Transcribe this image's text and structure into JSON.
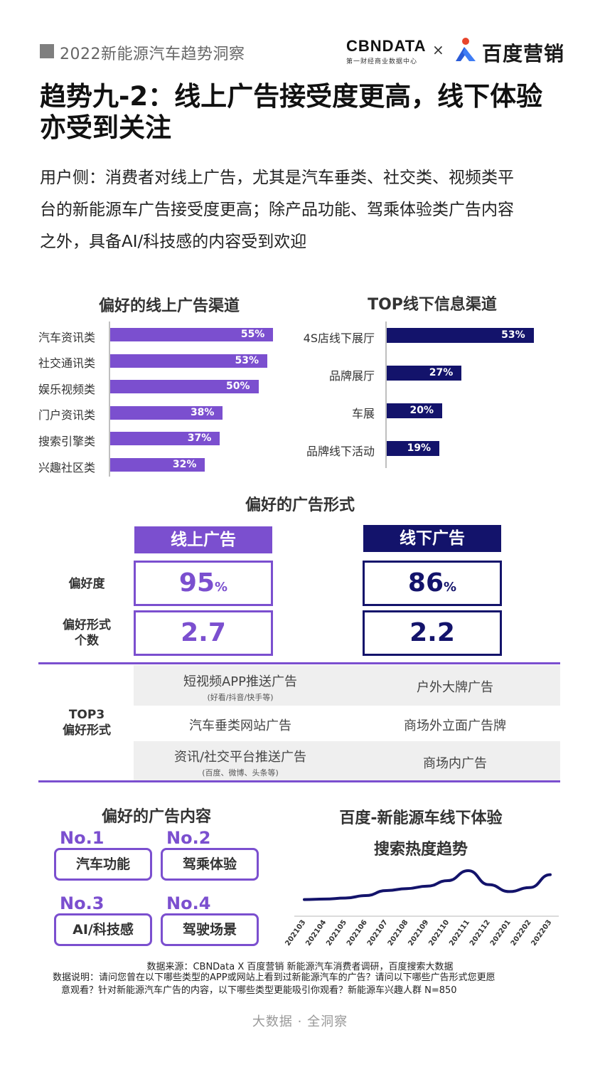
{
  "header": {
    "report_title": "2022新能源汽车趋势洞察",
    "cbn_logo": "CBNDATA",
    "cbn_logo_sub": "第一财经商业数据中心",
    "times": "×",
    "baidu_logo": "百度营销"
  },
  "title_line1": "趋势九-2：线上广告接受度更高，线下体验",
  "title_line2": "亦受到关注",
  "intro_line1": "用户侧：消费者对线上广告，尤其是汽车垂类、社交类、视频类平",
  "intro_line2": "台的新能源车广告接受度更高；除产品功能、驾乘体验类广告内容",
  "intro_line3": "之外，具备AI/科技感的内容受到欢迎",
  "colors": {
    "purple": "#7b4fcf",
    "navy": "#13136b",
    "gray_cell": "#efefef"
  },
  "chart_data": [
    {
      "type": "bar",
      "orientation": "horizontal",
      "title": "偏好的线上广告渠道",
      "categories": [
        "汽车资讯类",
        "社交通讯类",
        "娱乐视频类",
        "门户资讯类",
        "搜索引擎类",
        "兴趣社区类"
      ],
      "values": [
        55,
        53,
        50,
        38,
        37,
        32
      ],
      "value_labels": [
        "55%",
        "53%",
        "50%",
        "38%",
        "37%",
        "32%"
      ],
      "color": "#7b4fcf"
    },
    {
      "type": "bar",
      "orientation": "horizontal",
      "title": "TOP线下信息渠道",
      "categories": [
        "4S店线下展厅",
        "品牌展厅",
        "车展",
        "品牌线下活动"
      ],
      "values": [
        53,
        27,
        20,
        19
      ],
      "value_labels": [
        "53%",
        "27%",
        "20%",
        "19%"
      ],
      "color": "#13136b"
    },
    {
      "type": "line",
      "title_line1": "百度-新能源车线下体验",
      "title_line2": "搜索热度趋势",
      "x": [
        "202103",
        "202104",
        "202105",
        "202106",
        "202107",
        "202108",
        "202109",
        "202110",
        "202111",
        "202112",
        "202201",
        "202202",
        "202203"
      ],
      "values": [
        22,
        23,
        25,
        30,
        40,
        44,
        49,
        60,
        80,
        52,
        38,
        46,
        72
      ],
      "ylim": [
        0,
        100
      ],
      "color": "#13136b"
    }
  ],
  "ad_form": {
    "title": "偏好的广告形式",
    "online_header": "线上广告",
    "offline_header": "线下广告",
    "preference_label": "偏好度",
    "count_label_line1": "偏好形式",
    "count_label_line2": "个数",
    "online_pref": "95",
    "offline_pref": "86",
    "pct": "%",
    "online_count": "2.7",
    "offline_count": "2.2"
  },
  "top3": {
    "label_line1": "TOP3",
    "label_line2": "偏好形式",
    "online": [
      {
        "name": "短视频APP推送广告",
        "sub": "(好看/抖音/快手等)"
      },
      {
        "name": "汽车垂类网站广告",
        "sub": ""
      },
      {
        "name": "资讯/社交平台推送广告",
        "sub": "(百度、微博、头条等)"
      }
    ],
    "offline": [
      {
        "name": "户外大牌广告"
      },
      {
        "name": "商场外立面广告牌"
      },
      {
        "name": "商场内广告"
      }
    ]
  },
  "ad_content": {
    "title": "偏好的广告内容",
    "items": [
      {
        "rank": "No.1",
        "name": "汽车功能"
      },
      {
        "rank": "No.2",
        "name": "驾乘体验"
      },
      {
        "rank": "No.3",
        "name": "AI/科技感"
      },
      {
        "rank": "No.4",
        "name": "驾驶场景"
      }
    ]
  },
  "footer": {
    "source": "数据来源：CBNData X 百度营销 新能源汽车消费者调研，百度搜索大数据",
    "note_line1": "数据说明：请问您曾在以下哪些类型的APP或网站上看到过新能源汽车的广告？请问以下哪些广告形式您更愿",
    "note_line2": "意观看？针对新能源汽车广告的内容，以下哪些类型更能吸引你观看？新能源车兴趣人群 N=850",
    "tagline": "大数据 · 全洞察"
  }
}
